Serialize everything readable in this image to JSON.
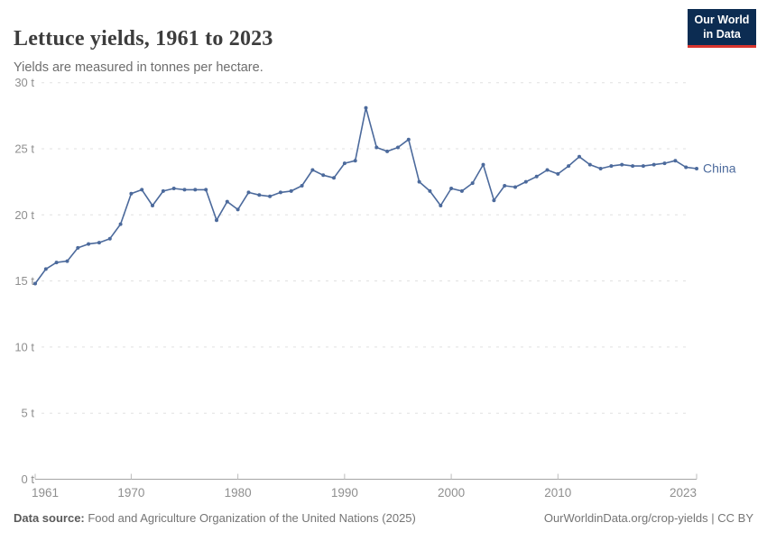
{
  "header": {
    "title": "Lettuce yields, 1961 to 2023",
    "subtitle": "Yields are measured in tonnes per hectare.",
    "logo": {
      "line1": "Our World",
      "line2": "in Data"
    }
  },
  "footer": {
    "source_label": "Data source:",
    "source_text": " Food and Agriculture Organization of the United Nations (2025)",
    "link_text": "OurWorldinData.org/crop-yields | CC BY"
  },
  "colors": {
    "series": "#4c6a9c",
    "grid": "#e0e0e0",
    "axis": "#a5a5a5",
    "tick_text": "#8f8f8f",
    "logo_bg": "#0c2c52",
    "logo_accent": "#d8352e"
  },
  "chart_data": {
    "type": "line",
    "title": "Lettuce yields, 1961 to 2023",
    "subtitle": "Yields are measured in tonnes per hectare.",
    "ylabel": "",
    "xlabel": "",
    "unit_suffix": " t",
    "ylim": [
      0,
      30
    ],
    "yticks": [
      0,
      5,
      10,
      15,
      20,
      25,
      30
    ],
    "xticks": [
      1961,
      1970,
      1980,
      1990,
      2000,
      2010,
      2023
    ],
    "grid": "horizontal-dashed",
    "legend_position": "end-of-line",
    "series": [
      {
        "name": "China",
        "years": [
          1961,
          1962,
          1963,
          1964,
          1965,
          1966,
          1967,
          1968,
          1969,
          1970,
          1971,
          1972,
          1973,
          1974,
          1975,
          1976,
          1977,
          1978,
          1979,
          1980,
          1981,
          1982,
          1983,
          1984,
          1985,
          1986,
          1987,
          1988,
          1989,
          1990,
          1991,
          1992,
          1993,
          1994,
          1995,
          1996,
          1997,
          1998,
          1999,
          2000,
          2001,
          2002,
          2003,
          2004,
          2005,
          2006,
          2007,
          2008,
          2009,
          2010,
          2011,
          2012,
          2013,
          2014,
          2015,
          2016,
          2017,
          2018,
          2019,
          2020,
          2021,
          2022,
          2023
        ],
        "values": [
          14.8,
          15.9,
          16.4,
          16.5,
          17.5,
          17.8,
          17.9,
          18.2,
          19.3,
          21.6,
          21.9,
          20.7,
          21.8,
          22.0,
          21.9,
          21.9,
          21.9,
          19.6,
          21.0,
          20.4,
          21.7,
          21.5,
          21.4,
          21.7,
          21.8,
          22.2,
          23.4,
          23.0,
          22.8,
          23.9,
          24.1,
          28.1,
          25.1,
          24.8,
          25.1,
          25.7,
          22.5,
          21.8,
          20.7,
          22.0,
          21.8,
          22.4,
          23.8,
          21.1,
          22.2,
          22.1,
          22.5,
          22.9,
          23.4,
          23.1,
          23.7,
          24.4,
          23.8,
          23.5,
          23.7,
          23.8,
          23.7,
          23.7,
          23.8,
          23.9,
          24.1,
          23.6,
          23.5
        ]
      }
    ]
  }
}
